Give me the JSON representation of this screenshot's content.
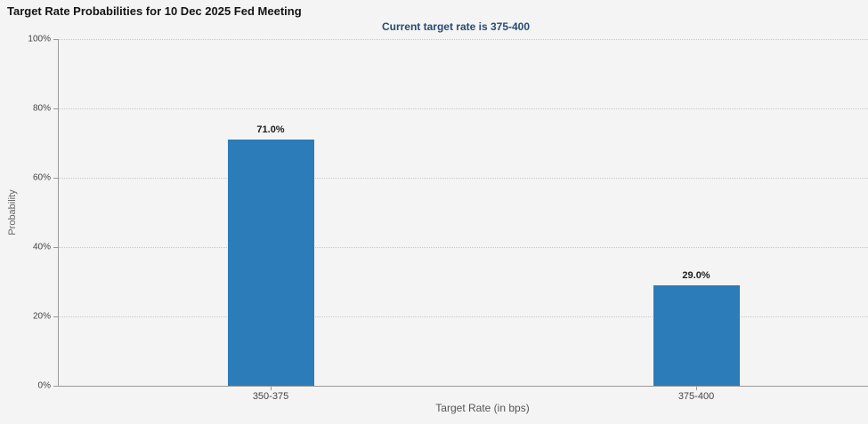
{
  "header": {
    "title": "Target Rate Probabilities for 10 Dec 2025 Fed Meeting",
    "subtitle": "Current target rate is 375-400"
  },
  "chart_data": {
    "type": "bar",
    "title": "Target Rate Probabilities for 10 Dec 2025 Fed Meeting",
    "subtitle": "Current target rate is 375-400",
    "categories": [
      "350-375",
      "375-400"
    ],
    "values": [
      71.0,
      29.0
    ],
    "data_labels": [
      "71.0%",
      "29.0%"
    ],
    "xlabel": "Target Rate (in bps)",
    "ylabel": "Probability",
    "ylim": [
      0,
      100
    ],
    "ytick_interval": 20,
    "ytick_labels": [
      "0%",
      "20%",
      "40%",
      "60%",
      "80%",
      "100%"
    ],
    "grid": "horizontal-dotted",
    "legend": "none",
    "colors": {
      "bar": "#2b7cb8",
      "background": "#f4f4f4",
      "subtitle_text": "#274b73",
      "axis_line": "#9a9a9a",
      "gridline": "#c8c8c8"
    }
  }
}
